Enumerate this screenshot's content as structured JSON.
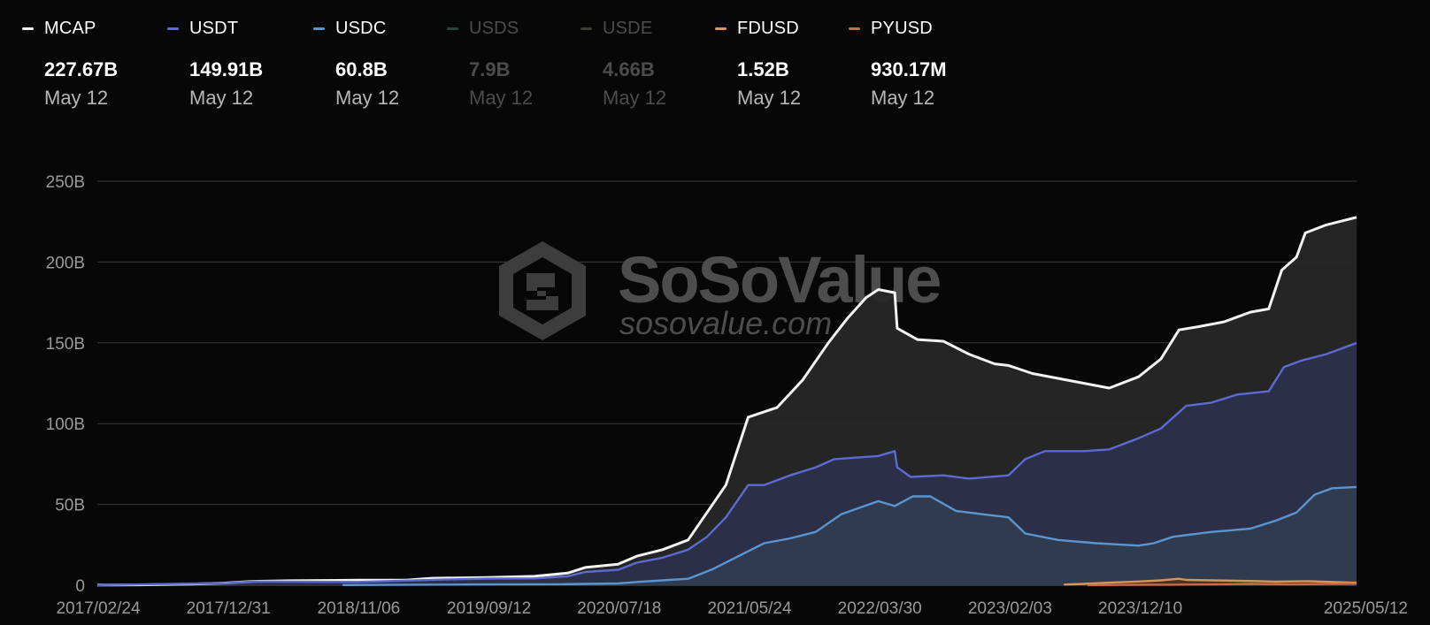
{
  "legend": [
    {
      "key": "mcap",
      "name": "MCAP",
      "value": "227.67B",
      "date": "May 12",
      "color": "#f2f2f2",
      "enabled": true
    },
    {
      "key": "usdt",
      "name": "USDT",
      "value": "149.91B",
      "date": "May 12",
      "color": "#5b6bd1",
      "enabled": true
    },
    {
      "key": "usdc",
      "name": "USDC",
      "value": "60.8B",
      "date": "May 12",
      "color": "#5b95d0",
      "enabled": true
    },
    {
      "key": "usds",
      "name": "USDS",
      "value": "7.9B",
      "date": "May 12",
      "color": "#244836",
      "enabled": false
    },
    {
      "key": "usde",
      "name": "USDE",
      "value": "4.66B",
      "date": "May 12",
      "color": "#3b3d2a",
      "enabled": false
    },
    {
      "key": "fdusd",
      "name": "FDUSD",
      "value": "1.52B",
      "date": "May 12",
      "color": "#d99553",
      "enabled": true
    },
    {
      "key": "pyusd",
      "name": "PYUSD",
      "value": "930.17M",
      "date": "May 12",
      "color": "#cf6a48",
      "enabled": true
    }
  ],
  "watermark": {
    "brand": "SoSoValue",
    "url": "sosovalue.com"
  },
  "chart_data": {
    "type": "area",
    "y_ticks": [
      "0",
      "50B",
      "100B",
      "150B",
      "200B",
      "250B"
    ],
    "ylim": [
      0,
      250
    ],
    "y_unit": "B",
    "x_ticks": [
      "2017/02/24",
      "2017/12/31",
      "2018/11/06",
      "2019/09/12",
      "2020/07/18",
      "2021/05/24",
      "2022/03/30",
      "2023/02/03",
      "2023/12/10",
      "2025/05/12"
    ],
    "x_range": [
      "2017-02-24",
      "2025-05-12"
    ],
    "grid": true,
    "series": [
      {
        "name": "MCAP",
        "color": "#f2f2f2",
        "fill": "#272727",
        "points": [
          [
            "2017-02-24",
            0.1
          ],
          [
            "2017-06-01",
            0.2
          ],
          [
            "2017-10-01",
            0.7
          ],
          [
            "2017-12-31",
            1.4
          ],
          [
            "2018-03-01",
            2.4
          ],
          [
            "2018-06-01",
            2.8
          ],
          [
            "2018-11-06",
            3.1
          ],
          [
            "2019-03-01",
            3.2
          ],
          [
            "2019-05-01",
            4.3
          ],
          [
            "2019-09-12",
            4.8
          ],
          [
            "2020-01-01",
            5.5
          ],
          [
            "2020-03-20",
            7.5
          ],
          [
            "2020-05-01",
            11
          ],
          [
            "2020-07-18",
            13
          ],
          [
            "2020-09-01",
            18
          ],
          [
            "2020-11-01",
            22
          ],
          [
            "2021-01-01",
            28
          ],
          [
            "2021-02-15",
            45
          ],
          [
            "2021-04-01",
            62
          ],
          [
            "2021-05-24",
            104
          ],
          [
            "2021-08-01",
            110
          ],
          [
            "2021-10-01",
            127
          ],
          [
            "2021-12-01",
            150
          ],
          [
            "2022-01-15",
            165
          ],
          [
            "2022-03-01",
            178
          ],
          [
            "2022-03-30",
            183
          ],
          [
            "2022-05-08",
            181
          ],
          [
            "2022-05-14",
            159
          ],
          [
            "2022-07-01",
            152
          ],
          [
            "2022-09-01",
            151
          ],
          [
            "2022-11-01",
            143
          ],
          [
            "2023-01-01",
            137
          ],
          [
            "2023-02-03",
            136
          ],
          [
            "2023-04-01",
            131
          ],
          [
            "2023-06-01",
            128
          ],
          [
            "2023-08-01",
            125
          ],
          [
            "2023-10-01",
            122
          ],
          [
            "2023-12-10",
            129
          ],
          [
            "2024-02-01",
            140
          ],
          [
            "2024-03-15",
            158
          ],
          [
            "2024-05-01",
            160
          ],
          [
            "2024-07-01",
            163
          ],
          [
            "2024-09-01",
            169
          ],
          [
            "2024-10-15",
            171
          ],
          [
            "2024-11-15",
            195
          ],
          [
            "2024-12-20",
            203
          ],
          [
            "2025-01-10",
            218
          ],
          [
            "2025-03-01",
            223
          ],
          [
            "2025-05-12",
            227.67
          ]
        ]
      },
      {
        "name": "USDT",
        "color": "#5b6bd1",
        "fill": "#2b2f49",
        "points": [
          [
            "2017-02-24",
            0.1
          ],
          [
            "2017-12-31",
            1.3
          ],
          [
            "2018-03-01",
            2.3
          ],
          [
            "2018-11-06",
            2.0
          ],
          [
            "2019-06-01",
            3.5
          ],
          [
            "2019-09-12",
            4.1
          ],
          [
            "2020-01-01",
            4.2
          ],
          [
            "2020-03-20",
            5.5
          ],
          [
            "2020-05-01",
            8.2
          ],
          [
            "2020-07-18",
            9.5
          ],
          [
            "2020-09-01",
            14
          ],
          [
            "2020-11-01",
            17
          ],
          [
            "2021-01-01",
            22
          ],
          [
            "2021-02-15",
            30
          ],
          [
            "2021-04-01",
            42
          ],
          [
            "2021-05-24",
            62
          ],
          [
            "2021-07-01",
            62
          ],
          [
            "2021-09-01",
            68
          ],
          [
            "2021-11-01",
            73
          ],
          [
            "2021-12-15",
            78
          ],
          [
            "2022-03-30",
            80
          ],
          [
            "2022-05-08",
            83
          ],
          [
            "2022-05-14",
            73
          ],
          [
            "2022-06-15",
            67
          ],
          [
            "2022-09-01",
            68
          ],
          [
            "2022-11-01",
            66
          ],
          [
            "2023-02-03",
            68
          ],
          [
            "2023-03-15",
            78
          ],
          [
            "2023-05-01",
            83
          ],
          [
            "2023-08-01",
            83
          ],
          [
            "2023-10-01",
            84
          ],
          [
            "2023-12-10",
            91
          ],
          [
            "2024-02-01",
            97
          ],
          [
            "2024-04-01",
            111
          ],
          [
            "2024-06-01",
            113
          ],
          [
            "2024-08-01",
            118
          ],
          [
            "2024-10-15",
            120
          ],
          [
            "2024-11-20",
            135
          ],
          [
            "2025-01-01",
            139
          ],
          [
            "2025-03-01",
            143
          ],
          [
            "2025-05-12",
            149.91
          ]
        ]
      },
      {
        "name": "USDC",
        "color": "#5b95d0",
        "fill": "#323c50",
        "points": [
          [
            "2018-10-01",
            0.1
          ],
          [
            "2019-06-01",
            0.4
          ],
          [
            "2019-09-12",
            0.5
          ],
          [
            "2020-03-01",
            0.6
          ],
          [
            "2020-07-18",
            1.1
          ],
          [
            "2020-09-01",
            2
          ],
          [
            "2020-11-01",
            3
          ],
          [
            "2021-01-01",
            4
          ],
          [
            "2021-03-01",
            10
          ],
          [
            "2021-05-24",
            21
          ],
          [
            "2021-07-01",
            26
          ],
          [
            "2021-09-01",
            29
          ],
          [
            "2021-11-01",
            33
          ],
          [
            "2022-01-01",
            44
          ],
          [
            "2022-03-30",
            52
          ],
          [
            "2022-05-08",
            49
          ],
          [
            "2022-06-20",
            55
          ],
          [
            "2022-08-01",
            55
          ],
          [
            "2022-10-01",
            46
          ],
          [
            "2022-12-01",
            44
          ],
          [
            "2023-02-03",
            42
          ],
          [
            "2023-03-15",
            32
          ],
          [
            "2023-06-01",
            28
          ],
          [
            "2023-09-01",
            26
          ],
          [
            "2023-12-10",
            24.5
          ],
          [
            "2024-01-15",
            26
          ],
          [
            "2024-03-01",
            30
          ],
          [
            "2024-06-01",
            33
          ],
          [
            "2024-09-01",
            35
          ],
          [
            "2024-11-01",
            40
          ],
          [
            "2024-12-20",
            45
          ],
          [
            "2025-02-01",
            56
          ],
          [
            "2025-03-15",
            60
          ],
          [
            "2025-05-12",
            60.8
          ]
        ]
      },
      {
        "name": "FDUSD",
        "color": "#d99553",
        "fill": "#4a3221",
        "points": [
          [
            "2023-06-15",
            0.4
          ],
          [
            "2023-08-01",
            0.8
          ],
          [
            "2023-10-01",
            1.6
          ],
          [
            "2023-12-10",
            2.3
          ],
          [
            "2024-02-01",
            3.0
          ],
          [
            "2024-03-15",
            4.0
          ],
          [
            "2024-04-01",
            3.3
          ],
          [
            "2024-06-01",
            3.0
          ],
          [
            "2024-09-01",
            2.6
          ],
          [
            "2024-11-01",
            2.2
          ],
          [
            "2025-01-15",
            2.5
          ],
          [
            "2025-03-15",
            2.0
          ],
          [
            "2025-05-12",
            1.52
          ]
        ]
      },
      {
        "name": "PYUSD",
        "color": "#cf6a48",
        "fill": "none",
        "points": [
          [
            "2023-08-10",
            0.04
          ],
          [
            "2023-12-10",
            0.3
          ],
          [
            "2024-03-01",
            0.35
          ],
          [
            "2024-06-01",
            0.5
          ],
          [
            "2024-09-01",
            0.8
          ],
          [
            "2024-12-01",
            0.5
          ],
          [
            "2025-03-01",
            0.75
          ],
          [
            "2025-05-12",
            0.93
          ]
        ]
      }
    ]
  }
}
